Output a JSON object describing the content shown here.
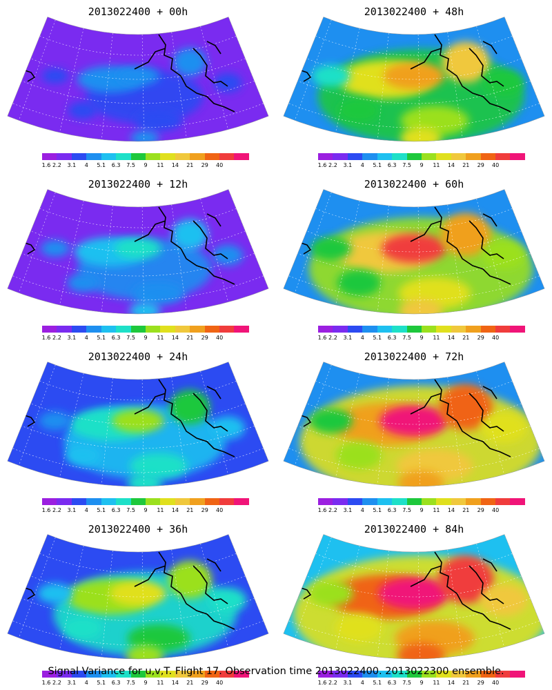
{
  "chart_data": {
    "type": "heatmap",
    "panels": [
      {
        "title": "2013022400 + 00h",
        "intensity": 0.15
      },
      {
        "title": "2013022400 + 48h",
        "intensity": 0.65
      },
      {
        "title": "2013022400 + 12h",
        "intensity": 0.25
      },
      {
        "title": "2013022400 + 60h",
        "intensity": 0.75
      },
      {
        "title": "2013022400 + 24h",
        "intensity": 0.4
      },
      {
        "title": "2013022400 + 72h",
        "intensity": 0.85
      },
      {
        "title": "2013022400 + 36h",
        "intensity": 0.52
      },
      {
        "title": "2013022400 + 84h",
        "intensity": 0.92
      }
    ],
    "colorbar": {
      "ticks": [
        "1.6",
        "2.2",
        "3.1",
        "4",
        "5.1",
        "6.3",
        "7.5",
        "9",
        "11",
        "14",
        "21",
        "29",
        "40"
      ],
      "colors": [
        "#9b1fe0",
        "#7a2bf0",
        "#2c4bf2",
        "#1e8ff0",
        "#1ec0f0",
        "#1ee0c8",
        "#1ec83c",
        "#9be01e",
        "#e0e01e",
        "#f0c83c",
        "#f0a01e",
        "#f06414",
        "#f03c3c",
        "#f01478"
      ]
    },
    "footer": "Signal Variance for u,v,T. Flight 17. Observation time 2013022400. 2013022300 ensemble."
  }
}
